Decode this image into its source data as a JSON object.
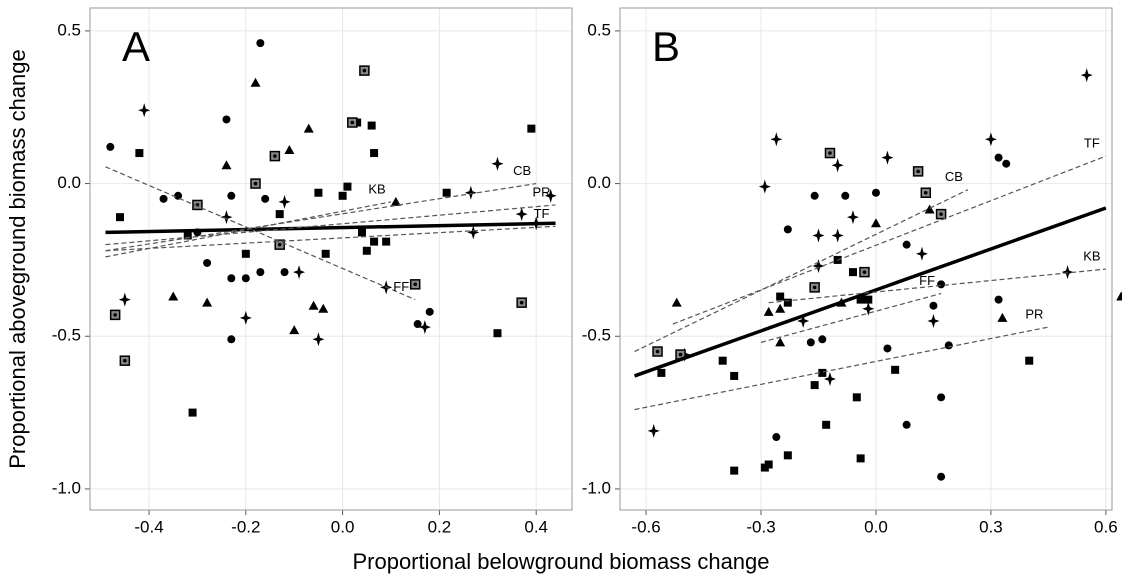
{
  "xlabel": "Proportional belowground biomass change",
  "ylabel": "Proportional aboveground biomass change",
  "chart_data": [
    {
      "type": "scatter",
      "title": "A",
      "xlim": [
        -0.522,
        0.474
      ],
      "ylim": [
        -1.069,
        0.575
      ],
      "xticks": [
        -0.4,
        -0.2,
        {
          "value": 0,
          "label": "0.0"
        },
        0.2,
        0.4
      ],
      "yticks": [
        {
          "value": -1,
          "label": "-1.0"
        },
        -0.5,
        {
          "value": 0,
          "label": "0.0"
        },
        0.5
      ],
      "grid": true,
      "series": [
        {
          "marker": "circle",
          "color": "#000000",
          "x": [
            -0.48,
            -0.17,
            -0.24,
            -0.37,
            -0.34,
            -0.23,
            -0.28,
            -0.2,
            -0.23,
            -0.17,
            -0.12,
            -0.23,
            -0.16,
            -0.3,
            0.18,
            0.155
          ],
          "y": [
            0.12,
            0.46,
            0.21,
            -0.05,
            -0.04,
            -0.04,
            -0.26,
            -0.31,
            -0.31,
            -0.29,
            -0.29,
            -0.51,
            -0.05,
            -0.16,
            -0.42,
            -0.46
          ]
        },
        {
          "marker": "square",
          "color": "#000000",
          "x": [
            -0.42,
            -0.46,
            -0.32,
            -0.13,
            -0.2,
            0.03,
            0.06,
            0.065,
            -0.05,
            0.01,
            0.0,
            -0.035,
            0.04,
            0.05,
            0.065,
            0.09,
            -0.31,
            0.215,
            0.39,
            0.32
          ],
          "y": [
            0.1,
            -0.11,
            -0.17,
            -0.1,
            -0.23,
            0.2,
            0.19,
            0.1,
            -0.03,
            -0.01,
            -0.04,
            -0.23,
            -0.16,
            -0.22,
            -0.19,
            -0.19,
            -0.75,
            -0.03,
            0.18,
            -0.49
          ]
        },
        {
          "marker": "triangle",
          "color": "#000000",
          "x": [
            -0.18,
            -0.24,
            -0.07,
            -0.11,
            -0.35,
            -0.28,
            -0.1,
            -0.06,
            -0.04,
            0.11
          ],
          "y": [
            0.33,
            0.06,
            0.18,
            0.11,
            -0.37,
            -0.39,
            -0.48,
            -0.4,
            -0.41,
            -0.06
          ]
        },
        {
          "marker": "star",
          "color": "#000000",
          "x": [
            -0.41,
            -0.24,
            -0.12,
            -0.09,
            -0.2,
            -0.05,
            0.09,
            0.17,
            -0.45,
            0.265,
            0.32,
            0.37,
            0.27,
            0.43,
            0.4
          ],
          "y": [
            0.24,
            -0.11,
            -0.06,
            -0.29,
            -0.44,
            -0.51,
            -0.34,
            -0.47,
            -0.38,
            -0.03,
            0.065,
            -0.1,
            -0.16,
            -0.04,
            -0.13
          ]
        },
        {
          "marker": "boxed",
          "color": "#000000",
          "x": [
            -0.47,
            -0.45,
            -0.3,
            -0.14,
            -0.18,
            -0.13,
            0.02,
            0.045,
            0.15,
            0.37
          ],
          "y": [
            -0.43,
            -0.58,
            -0.07,
            0.09,
            0.0,
            -0.2,
            0.2,
            0.37,
            -0.33,
            -0.39
          ]
        }
      ],
      "fits": [
        {
          "style": "solid",
          "x": [
            -0.49,
            0.44
          ],
          "y": [
            -0.16,
            -0.13
          ]
        },
        {
          "style": "dashed",
          "label": "FF",
          "x": [
            -0.49,
            0.15
          ],
          "y": [
            0.055,
            -0.38
          ]
        },
        {
          "style": "dashed",
          "label": "KB",
          "x": [
            -0.49,
            0.1
          ],
          "y": [
            -0.24,
            -0.06
          ]
        },
        {
          "style": "dashed",
          "label": "CB",
          "x": [
            -0.49,
            0.4
          ],
          "y": [
            -0.22,
            0.0
          ]
        },
        {
          "style": "dashed",
          "label": "PR",
          "x": [
            -0.49,
            0.44
          ],
          "y": [
            -0.2,
            -0.07
          ]
        },
        {
          "style": "dashed",
          "label": "TF",
          "x": [
            -0.49,
            0.44
          ],
          "y": [
            -0.22,
            -0.14
          ]
        }
      ]
    },
    {
      "type": "scatter",
      "title": "B",
      "xlim": [
        -0.668,
        0.616
      ],
      "ylim": [
        -1.069,
        0.575
      ],
      "xticks": [
        -0.6,
        -0.3,
        {
          "value": 0,
          "label": "0.0"
        },
        0.3,
        0.6
      ],
      "yticks": [
        {
          "value": -1,
          "label": "-1.0"
        },
        -0.5,
        {
          "value": 0,
          "label": "0.0"
        },
        0.5
      ],
      "grid": true,
      "series": [
        {
          "marker": "circle",
          "color": "#000000",
          "x": [
            -0.23,
            -0.16,
            -0.08,
            0,
            0.32,
            0.34,
            0.08,
            0.17,
            0.15,
            0.32,
            0.03,
            0.19,
            -0.14,
            -0.17,
            -0.26,
            0.08,
            0.17,
            0.17
          ],
          "y": [
            -0.15,
            -0.04,
            -0.04,
            -0.03,
            0.085,
            0.065,
            -0.2,
            -0.33,
            -0.4,
            -0.38,
            -0.54,
            -0.53,
            -0.51,
            -0.52,
            -0.83,
            -0.79,
            -0.7,
            -0.96
          ]
        },
        {
          "marker": "square",
          "color": "#000000",
          "x": [
            -0.1,
            -0.06,
            -0.04,
            -0.02,
            -0.23,
            -0.25,
            -0.56,
            -0.4,
            -0.37,
            -0.23,
            -0.28,
            -0.29,
            -0.37,
            -0.16,
            -0.14,
            -0.13,
            -0.05,
            -0.04,
            0.05,
            0.4
          ],
          "y": [
            -0.25,
            -0.29,
            -0.38,
            -0.38,
            -0.39,
            -0.37,
            -0.62,
            -0.58,
            -0.63,
            -0.89,
            -0.92,
            -0.93,
            -0.94,
            -0.66,
            -0.62,
            -0.79,
            -0.7,
            -0.9,
            -0.61,
            -0.58
          ]
        },
        {
          "marker": "triangle",
          "color": "#000000",
          "x": [
            -0.52,
            -0.28,
            -0.25,
            -0.25,
            -0.09,
            0,
            0.14,
            0.33,
            0.64
          ],
          "y": [
            -0.39,
            -0.42,
            -0.41,
            -0.52,
            -0.39,
            -0.13,
            -0.085,
            -0.44,
            -0.37
          ]
        },
        {
          "marker": "star",
          "color": "#000000",
          "x": [
            -0.26,
            -0.29,
            -0.1,
            0.03,
            0.3,
            0.55,
            -0.06,
            -0.15,
            -0.1,
            -0.15,
            0.12,
            0.15,
            -0.02,
            -0.19,
            -0.12,
            -0.5,
            -0.58,
            0.5
          ],
          "y": [
            0.145,
            -0.01,
            0.06,
            0.085,
            0.145,
            0.355,
            -0.11,
            -0.17,
            -0.17,
            -0.27,
            -0.23,
            -0.45,
            -0.41,
            -0.45,
            -0.64,
            -0.56,
            -0.81,
            -0.29
          ]
        },
        {
          "marker": "boxed",
          "color": "#000000",
          "x": [
            -0.57,
            -0.51,
            -0.12,
            0.11,
            0.13,
            -0.03,
            -0.16,
            0.17
          ],
          "y": [
            -0.55,
            -0.56,
            0.1,
            0.04,
            -0.03,
            -0.29,
            -0.34,
            -0.1
          ]
        }
      ],
      "fits": [
        {
          "style": "solid",
          "x": [
            -0.63,
            0.6
          ],
          "y": [
            -0.63,
            -0.08
          ]
        },
        {
          "style": "dashed",
          "label": "CB",
          "x": [
            -0.63,
            0.24
          ],
          "y": [
            -0.55,
            -0.02
          ]
        },
        {
          "style": "dashed",
          "label": "TF",
          "x": [
            -0.53,
            0.6
          ],
          "y": [
            -0.46,
            0.09
          ]
        },
        {
          "style": "dashed",
          "label": "KB",
          "x": [
            -0.28,
            0.6
          ],
          "y": [
            -0.39,
            -0.28
          ]
        },
        {
          "style": "dashed",
          "label": "FF",
          "x": [
            -0.3,
            0.17
          ],
          "y": [
            -0.52,
            -0.36
          ]
        },
        {
          "style": "dashed",
          "label": "PR",
          "x": [
            -0.63,
            0.45
          ],
          "y": [
            -0.74,
            -0.47
          ]
        }
      ]
    }
  ]
}
